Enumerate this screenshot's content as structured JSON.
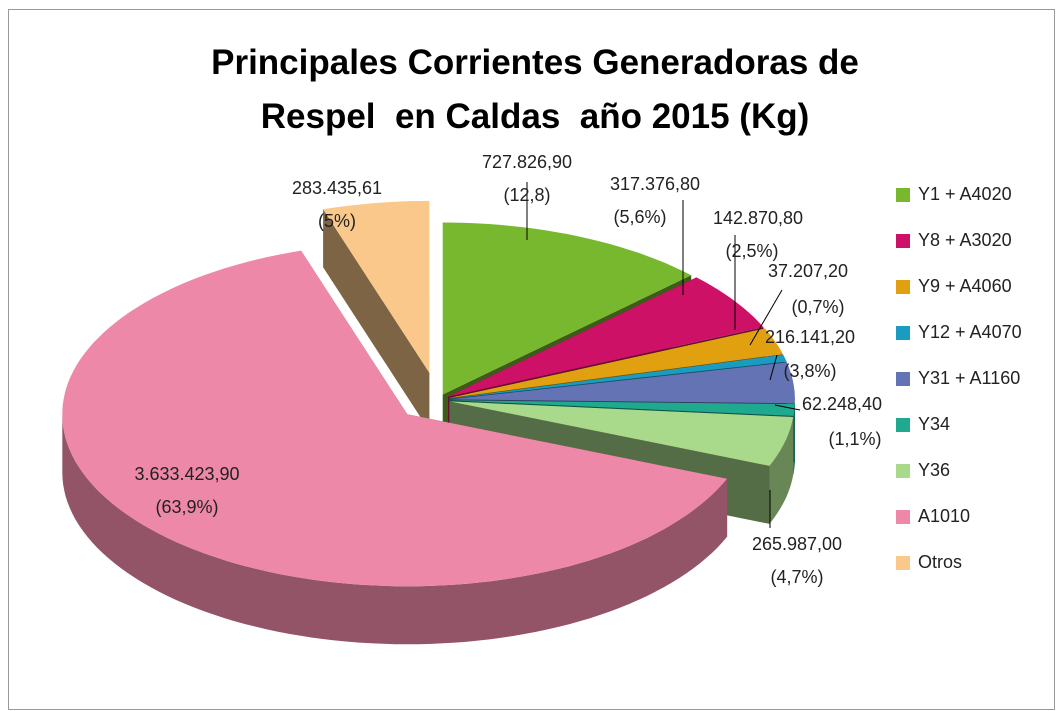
{
  "chart_data": {
    "type": "pie3d",
    "title": "Principales Corrientes Generadoras de Respel  en Caldas  año 2015 (Kg)",
    "categories": [
      "Y1 + A4020",
      "Y8 + A3020",
      "Y9 + A4060",
      "Y12 + A4070",
      "Y31 + A1160",
      "Y34",
      "Y36",
      "A1010",
      "Otros"
    ],
    "values": [
      727826.9,
      317376.8,
      142870.8,
      37207.2,
      216141.2,
      62248.4,
      265987.0,
      3633423.9,
      283435.61
    ],
    "value_labels": [
      "727.826,90",
      "317.376,80",
      "142.870,80",
      "37.207,20",
      "216.141,20",
      "62.248,40",
      "265.987,00",
      "3.633.423,90",
      "283.435,61"
    ],
    "percent_labels": [
      "(12,8)",
      "(5,6%)",
      "(2,5%)",
      "(0,7%)",
      "(3,8%)",
      "(1,1%)",
      "(4,7%)",
      "(63,9%)",
      "(5%)"
    ],
    "colors": [
      "#77b82e",
      "#cc1166",
      "#e0a010",
      "#1a9bbf",
      "#6373b3",
      "#1fa98f",
      "#a9d98b",
      "#ee88a8",
      "#f9c88a"
    ],
    "legend": "right"
  }
}
